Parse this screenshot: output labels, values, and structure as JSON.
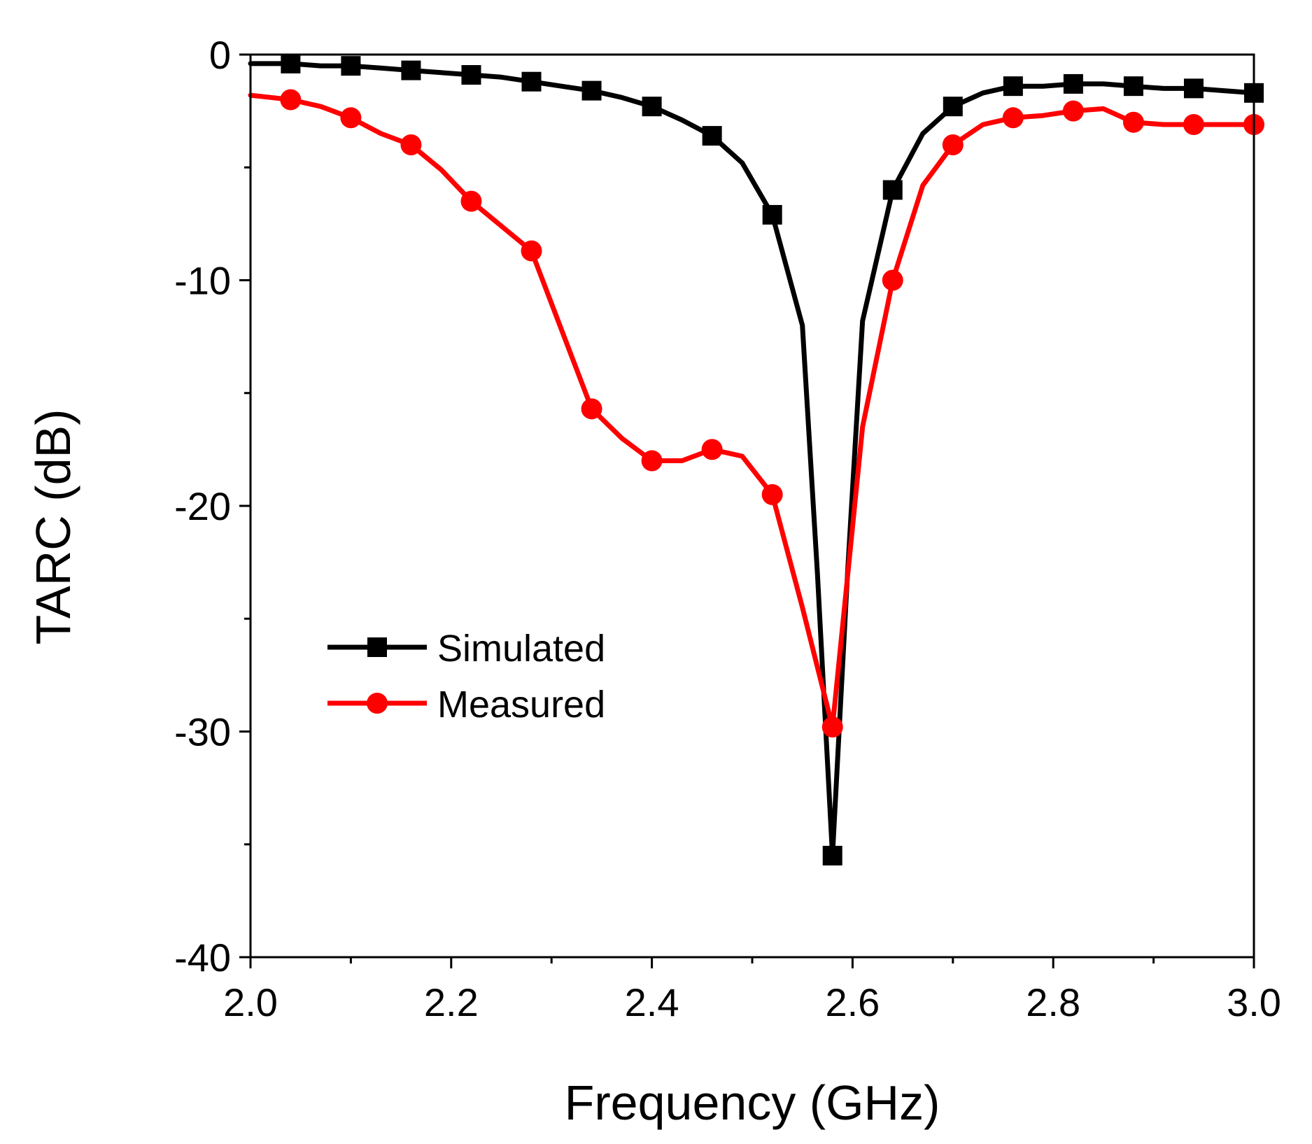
{
  "chart_data": {
    "type": "line",
    "title": "",
    "xlabel": "Frequency (GHz)",
    "ylabel": "TARC (dB)",
    "xlim": [
      2.0,
      3.0
    ],
    "ylim": [
      -40,
      0
    ],
    "x_ticks": [
      2.0,
      2.2,
      2.4,
      2.6,
      2.8,
      3.0
    ],
    "x_tick_labels": [
      "2.0",
      "2.2",
      "2.4",
      "2.6",
      "2.8",
      "3.0"
    ],
    "y_ticks": [
      -40,
      -30,
      -20,
      -10,
      0
    ],
    "y_tick_labels": [
      "-40",
      "-30",
      "-20",
      "-10",
      "0"
    ],
    "x_minor_step": 0.1,
    "y_minor_step": 5,
    "grid": false,
    "legend_position": "lower-left",
    "series": [
      {
        "name": "Simulated",
        "color": "#000000",
        "marker": "square",
        "x": [
          2.0,
          2.04,
          2.07,
          2.1,
          2.13,
          2.16,
          2.19,
          2.22,
          2.25,
          2.28,
          2.31,
          2.34,
          2.37,
          2.4,
          2.43,
          2.46,
          2.49,
          2.52,
          2.55,
          2.565,
          2.58,
          2.595,
          2.61,
          2.64,
          2.67,
          2.7,
          2.73,
          2.76,
          2.79,
          2.82,
          2.85,
          2.88,
          2.91,
          2.94,
          2.97,
          3.0
        ],
        "y": [
          -0.4,
          -0.4,
          -0.5,
          -0.5,
          -0.6,
          -0.7,
          -0.8,
          -0.9,
          -1.0,
          -1.2,
          -1.4,
          -1.6,
          -1.9,
          -2.3,
          -2.9,
          -3.6,
          -4.8,
          -7.1,
          -12.0,
          -23.0,
          -35.5,
          -23.0,
          -11.8,
          -6.0,
          -3.5,
          -2.3,
          -1.7,
          -1.4,
          -1.4,
          -1.3,
          -1.3,
          -1.4,
          -1.5,
          -1.5,
          -1.6,
          -1.7
        ],
        "marker_x": [
          2.04,
          2.1,
          2.16,
          2.22,
          2.28,
          2.34,
          2.4,
          2.46,
          2.52,
          2.58,
          2.64,
          2.7,
          2.76,
          2.82,
          2.88,
          2.94,
          3.0
        ],
        "marker_y": [
          -0.4,
          -0.5,
          -0.7,
          -0.9,
          -1.2,
          -1.6,
          -2.3,
          -3.6,
          -7.1,
          -35.5,
          -6.0,
          -2.3,
          -1.4,
          -1.3,
          -1.4,
          -1.5,
          -1.7
        ]
      },
      {
        "name": "Measured",
        "color": "#ff0000",
        "marker": "circle",
        "x": [
          2.0,
          2.04,
          2.07,
          2.1,
          2.13,
          2.16,
          2.19,
          2.22,
          2.25,
          2.28,
          2.31,
          2.34,
          2.37,
          2.4,
          2.43,
          2.46,
          2.49,
          2.52,
          2.55,
          2.58,
          2.61,
          2.64,
          2.67,
          2.7,
          2.73,
          2.76,
          2.79,
          2.82,
          2.85,
          2.88,
          2.91,
          2.94,
          2.97,
          3.0
        ],
        "y": [
          -1.8,
          -2.0,
          -2.3,
          -2.8,
          -3.5,
          -4.0,
          -5.1,
          -6.5,
          -7.6,
          -8.7,
          -12.2,
          -15.7,
          -17.0,
          -18.0,
          -18.0,
          -17.5,
          -17.8,
          -19.5,
          -24.5,
          -29.8,
          -16.5,
          -10.0,
          -5.8,
          -4.0,
          -3.1,
          -2.8,
          -2.7,
          -2.5,
          -2.4,
          -3.0,
          -3.1,
          -3.1,
          -3.1,
          -3.1
        ],
        "marker_x": [
          2.04,
          2.1,
          2.16,
          2.22,
          2.28,
          2.34,
          2.4,
          2.46,
          2.52,
          2.58,
          2.64,
          2.7,
          2.76,
          2.82,
          2.88,
          2.94,
          3.0
        ],
        "marker_y": [
          -2.0,
          -2.8,
          -4.0,
          -6.5,
          -8.7,
          -15.7,
          -18.0,
          -17.5,
          -19.5,
          -29.8,
          -10.0,
          -4.0,
          -2.8,
          -2.5,
          -3.0,
          -3.1,
          -3.1
        ]
      }
    ]
  }
}
